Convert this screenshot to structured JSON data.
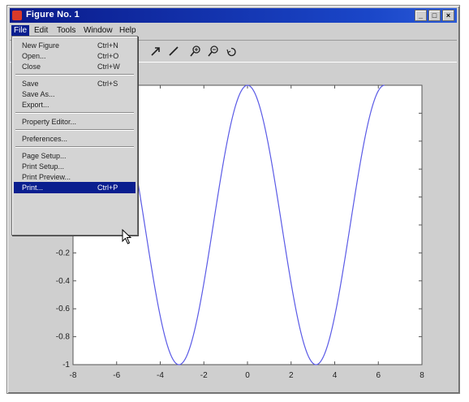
{
  "window": {
    "title": "Figure No. 1",
    "controls": [
      "_",
      "□",
      "×"
    ]
  },
  "menubar": [
    "File",
    "Edit",
    "Tools",
    "Window",
    "Help"
  ],
  "active_menu": "File",
  "file_menu": {
    "groups": [
      [
        {
          "label": "New Figure",
          "shortcut": "Ctrl+N"
        },
        {
          "label": "Open...",
          "shortcut": "Ctrl+O"
        },
        {
          "label": "Close",
          "shortcut": "Ctrl+W"
        }
      ],
      [
        {
          "label": "Save",
          "shortcut": "Ctrl+S"
        },
        {
          "label": "Save As...",
          "shortcut": ""
        },
        {
          "label": "Export...",
          "shortcut": ""
        }
      ],
      [
        {
          "label": "Property Editor...",
          "shortcut": ""
        }
      ],
      [
        {
          "label": "Preferences...",
          "shortcut": ""
        }
      ],
      [
        {
          "label": "Page Setup...",
          "shortcut": ""
        },
        {
          "label": "Print Setup...",
          "shortcut": ""
        },
        {
          "label": "Print Preview...",
          "shortcut": ""
        },
        {
          "label": "Print...",
          "shortcut": "Ctrl+P"
        }
      ]
    ],
    "highlighted": "Print..."
  },
  "toolbar_icons": [
    "arrow-icon",
    "line-icon",
    "zoom-in-icon",
    "zoom-out-icon",
    "rotate-icon"
  ],
  "colors": {
    "curve": "#5a5ae6",
    "highlight": "#0a1e8f"
  },
  "chart_data": {
    "type": "line",
    "function": "cos(x) from -2*pi to 2*pi",
    "x_range": [
      -6.283,
      6.283
    ],
    "xlim": [
      -8,
      8
    ],
    "ylim": [
      -1,
      1
    ],
    "x_ticks": [
      "-8",
      "-6",
      "-4",
      "-2",
      "0",
      "2",
      "4",
      "6",
      "8"
    ],
    "y_ticks": [
      "-0.2",
      "-0.4",
      "-0.6",
      "-0.8",
      "-1"
    ],
    "series": [
      {
        "values_from": "cos"
      }
    ],
    "grid": false
  }
}
